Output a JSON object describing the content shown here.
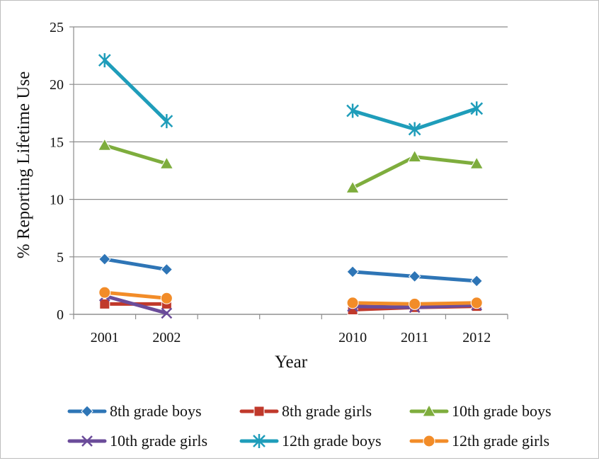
{
  "chart_data": {
    "type": "line",
    "title": "",
    "xlabel": "Year",
    "ylabel": "% Reporting Lifetime Use",
    "categories": [
      "2001",
      "2002",
      "",
      "",
      "2010",
      "2011",
      "2012"
    ],
    "ylim": [
      0,
      25
    ],
    "yticks": [
      0,
      5,
      10,
      15,
      20,
      25
    ],
    "ytick_labels": [
      "0",
      "5",
      "10",
      "15",
      "20",
      "25"
    ],
    "grid": "horizontal",
    "legend_position": "bottom",
    "series": [
      {
        "name": "8th grade boys",
        "color": "#2E75B6",
        "marker": "diamond",
        "values": [
          4.8,
          3.9,
          null,
          null,
          3.7,
          3.3,
          2.9
        ]
      },
      {
        "name": "8th grade girls",
        "color": "#C0392B",
        "marker": "square",
        "values": [
          0.9,
          0.9,
          null,
          null,
          0.4,
          0.6,
          0.7
        ]
      },
      {
        "name": "10th grade boys",
        "color": "#7EAD3D",
        "marker": "triangle",
        "values": [
          14.7,
          13.1,
          null,
          null,
          11.0,
          13.7,
          13.1
        ]
      },
      {
        "name": "10th grade girls",
        "color": "#6B4C9A",
        "marker": "x",
        "values": [
          1.6,
          0.1,
          null,
          null,
          0.7,
          0.6,
          0.8
        ]
      },
      {
        "name": "12th grade boys",
        "color": "#1F9DBA",
        "marker": "star",
        "values": [
          22.1,
          16.8,
          null,
          null,
          17.7,
          16.1,
          17.9
        ]
      },
      {
        "name": "12th grade girls",
        "color": "#F28C28",
        "marker": "circle",
        "values": [
          1.9,
          1.4,
          null,
          null,
          1.0,
          0.9,
          1.0
        ]
      }
    ]
  }
}
